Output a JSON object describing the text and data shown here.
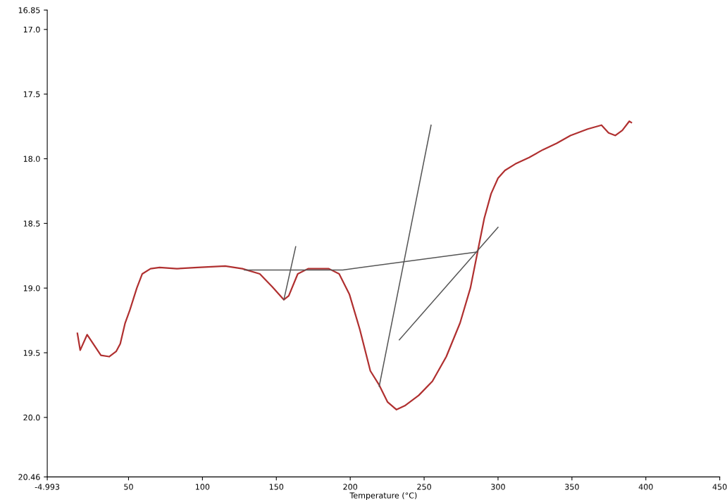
{
  "chart_data": {
    "type": "line",
    "xlabel": "Temperature (°C)",
    "xlim": [
      -4.993,
      450
    ],
    "xticks": [
      {
        "value": -4.993,
        "label": "-4.993"
      },
      50,
      100,
      150,
      200,
      250,
      300,
      350,
      400,
      450
    ],
    "ylim": [
      20.46,
      16.85
    ],
    "yticks": [
      {
        "value": 16.85,
        "label": "16.85"
      },
      {
        "value": 17.0,
        "label": "17.0"
      },
      {
        "value": 17.5,
        "label": "17.5"
      },
      {
        "value": 18.0,
        "label": "18.0"
      },
      {
        "value": 18.5,
        "label": "18.5"
      },
      {
        "value": 19.0,
        "label": "19.0"
      },
      {
        "value": 19.5,
        "label": "19.5"
      },
      {
        "value": 20.0,
        "label": "20.0"
      },
      {
        "value": 20.46,
        "label": "20.46"
      }
    ],
    "grid": false,
    "legend": false,
    "marker": "none",
    "line_style": "solid",
    "series": [
      {
        "color": "#b03030",
        "x": [
          15.4,
          17.3,
          22,
          31.3,
          36.9,
          41.6,
          44.4,
          47.7,
          50.9,
          55.6,
          59.3,
          64.9,
          71,
          82.7,
          96.7,
          115.4,
          127,
          138.8,
          147.2,
          155.1,
          158.4,
          164.5,
          171.5,
          185.5,
          192.5,
          199.5,
          206.5,
          213.6,
          219.6,
          225.2,
          231.3,
          236.9,
          246.3,
          255.6,
          265,
          274.3,
          281.3,
          286,
          290.7,
          295.3,
          300,
          304.7,
          311.7,
          321,
          330.4,
          339.7,
          349,
          360.7,
          370,
          374.8,
          379.4,
          384.1,
          388.8,
          390.2
        ],
        "values": [
          19.35,
          19.48,
          19.36,
          19.52,
          19.53,
          19.49,
          19.43,
          19.27,
          19.17,
          19.0,
          18.89,
          18.85,
          18.84,
          18.85,
          18.84,
          18.83,
          18.85,
          18.89,
          18.99,
          19.09,
          19.06,
          18.89,
          18.85,
          18.85,
          18.89,
          19.05,
          19.32,
          19.64,
          19.75,
          19.88,
          19.94,
          19.91,
          19.83,
          19.72,
          19.53,
          19.27,
          19.0,
          18.73,
          18.46,
          18.27,
          18.15,
          18.09,
          18.04,
          17.99,
          17.93,
          17.88,
          17.82,
          17.77,
          17.74,
          17.8,
          17.82,
          17.78,
          17.71,
          17.72
        ]
      },
      {
        "color": "#555555",
        "x": [
          128.5,
          194.9,
          286
        ],
        "values": [
          18.86,
          18.86,
          18.72
        ]
      },
      {
        "color": "#555555",
        "x": [
          155.1,
          163.1
        ],
        "values": [
          19.09,
          18.68
        ]
      },
      {
        "color": "#555555",
        "x": [
          219.6,
          254.7
        ],
        "values": [
          19.76,
          17.74
        ]
      },
      {
        "color": "#555555",
        "x": [
          233.2,
          300
        ],
        "values": [
          19.4,
          18.53
        ]
      }
    ]
  }
}
